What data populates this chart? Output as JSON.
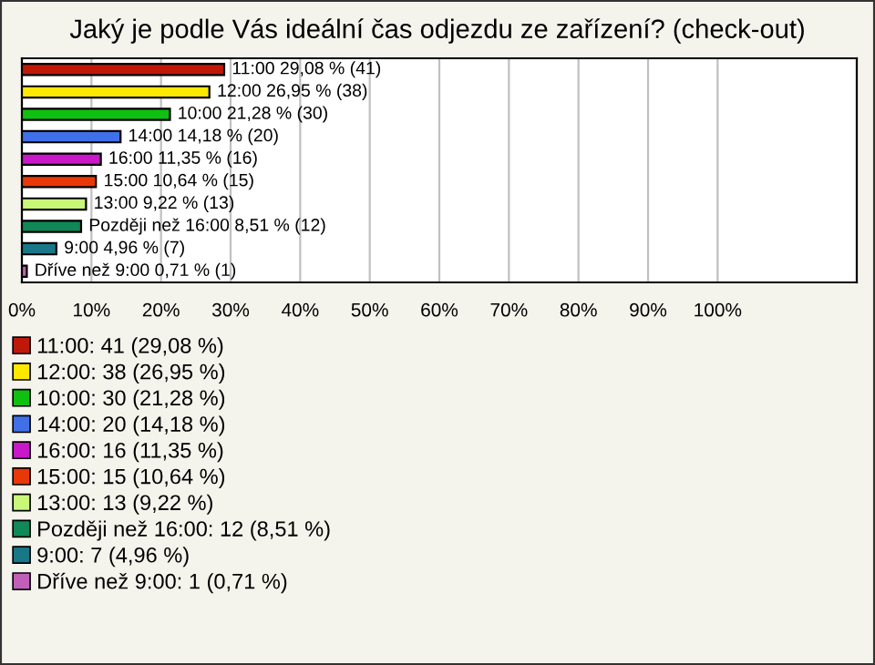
{
  "chart_data": {
    "type": "bar",
    "orientation": "horizontal",
    "title": "Jaký je podle Vás ideální čas odjezdu ze zařízení? (check-out)",
    "categories": [
      null,
      null,
      null,
      null,
      null,
      null,
      null,
      null,
      null,
      null
    ],
    "series": [
      {
        "name": "11:00: 41 (29,08 %)",
        "color": "#c01808",
        "values": [
          29.08,
          null,
          null,
          null,
          null,
          null,
          null,
          null,
          null,
          null
        ],
        "value_labels": [
          "11:00 29,08 % (41)",
          null,
          null,
          null,
          null,
          null,
          null,
          null,
          null,
          null
        ]
      },
      {
        "name": "12:00: 38 (26,95 %)",
        "color": "#ffe800",
        "values": [
          null,
          26.95,
          null,
          null,
          null,
          null,
          null,
          null,
          null,
          null
        ],
        "value_labels": [
          null,
          "12:00 26,95 % (38)",
          null,
          null,
          null,
          null,
          null,
          null,
          null,
          null
        ]
      },
      {
        "name": "10:00: 30 (21,28 %)",
        "color": "#10c010",
        "values": [
          null,
          null,
          21.28,
          null,
          null,
          null,
          null,
          null,
          null,
          null
        ],
        "value_labels": [
          null,
          null,
          "10:00 21,28 % (30)",
          null,
          null,
          null,
          null,
          null,
          null,
          null
        ]
      },
      {
        "name": "14:00: 20 (14,18 %)",
        "color": "#4070e8",
        "values": [
          null,
          null,
          null,
          14.18,
          null,
          null,
          null,
          null,
          null,
          null
        ],
        "value_labels": [
          null,
          null,
          null,
          "14:00 14,18 % (20)",
          null,
          null,
          null,
          null,
          null,
          null
        ]
      },
      {
        "name": "16:00: 16 (11,35 %)",
        "color": "#c818c8",
        "values": [
          null,
          null,
          null,
          null,
          11.35,
          null,
          null,
          null,
          null,
          null
        ],
        "value_labels": [
          null,
          null,
          null,
          null,
          "16:00 11,35 % (16)",
          null,
          null,
          null,
          null,
          null
        ]
      },
      {
        "name": "15:00: 15 (10,64 %)",
        "color": "#e83808",
        "values": [
          null,
          null,
          null,
          null,
          null,
          10.64,
          null,
          null,
          null,
          null
        ],
        "value_labels": [
          null,
          null,
          null,
          null,
          null,
          "15:00 10,64 % (15)",
          null,
          null,
          null,
          null
        ]
      },
      {
        "name": "13:00: 13 (9,22 %)",
        "color": "#c8f878",
        "values": [
          null,
          null,
          null,
          null,
          null,
          null,
          9.22,
          null,
          null,
          null
        ],
        "value_labels": [
          null,
          null,
          null,
          null,
          null,
          null,
          "13:00 9,22 % (13)",
          null,
          null,
          null
        ]
      },
      {
        "name": "Později než 16:00: 12 (8,51 %)",
        "color": "#108858",
        "values": [
          null,
          null,
          null,
          null,
          null,
          null,
          null,
          8.51,
          null,
          null
        ],
        "value_labels": [
          null,
          null,
          null,
          null,
          null,
          null,
          null,
          "Později než 16:00 8,51 % (12)",
          null,
          null
        ]
      },
      {
        "name": "9:00: 7 (4,96 %)",
        "color": "#187888",
        "values": [
          null,
          null,
          null,
          null,
          null,
          null,
          null,
          null,
          4.96,
          null
        ],
        "value_labels": [
          null,
          null,
          null,
          null,
          null,
          null,
          null,
          null,
          "9:00 4,96 % (7)",
          null
        ]
      },
      {
        "name": "Dříve než 9:00: 1 (0,71 %)",
        "color": "#c060b8",
        "values": [
          null,
          null,
          null,
          null,
          null,
          null,
          null,
          null,
          null,
          0.71
        ],
        "value_labels": [
          null,
          null,
          null,
          null,
          null,
          null,
          null,
          null,
          null,
          "Dříve než 9:00 0,71 % (1)"
        ]
      }
    ],
    "xlim": [
      0,
      120
    ],
    "xticks": [
      {
        "value": 0,
        "label": "0%"
      },
      {
        "value": 10,
        "label": "10%"
      },
      {
        "value": 20,
        "label": "20%"
      },
      {
        "value": 30,
        "label": "30%"
      },
      {
        "value": 40,
        "label": "40%"
      },
      {
        "value": 50,
        "label": "50%"
      },
      {
        "value": 60,
        "label": "60%"
      },
      {
        "value": 70,
        "label": "70%"
      },
      {
        "value": 80,
        "label": "80%"
      },
      {
        "value": 90,
        "label": "90%"
      },
      {
        "value": 100,
        "label": "100%"
      }
    ],
    "grid": "x",
    "tick_labels": "x",
    "legend": "bottom"
  }
}
